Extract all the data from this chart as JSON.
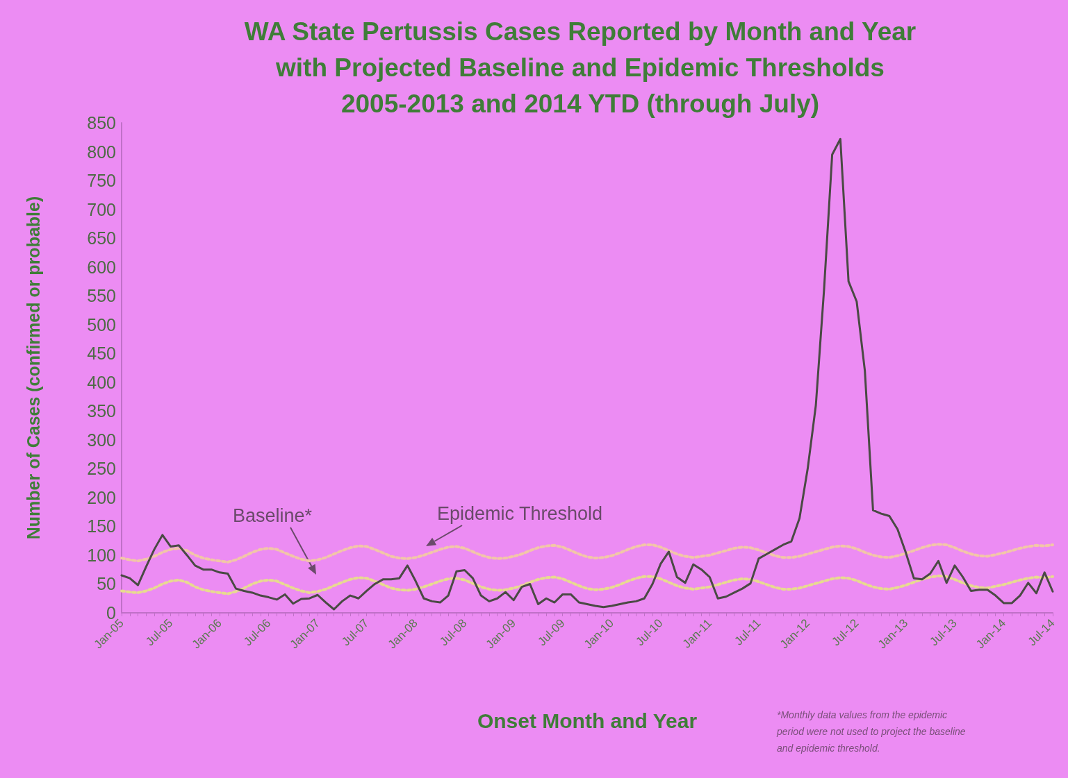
{
  "chart_data": {
    "type": "line",
    "title": "WA State Pertussis Cases Reported by Month and Year\nwith Projected Baseline and Epidemic Thresholds\n2005-2013 and 2014 YTD (through July)",
    "xlabel": "Onset Month and Year",
    "ylabel": "Number of Cases (confirmed or probable)",
    "categories": [
      "Jan-05",
      null,
      null,
      null,
      null,
      null,
      "Jul-05",
      null,
      null,
      null,
      null,
      null,
      "Jan-06",
      null,
      null,
      null,
      null,
      null,
      "Jul-06",
      null,
      null,
      null,
      null,
      null,
      "Jan-07",
      null,
      null,
      null,
      null,
      null,
      "Jul-07",
      null,
      null,
      null,
      null,
      null,
      "Jan-08",
      null,
      null,
      null,
      null,
      null,
      "Jul-08",
      null,
      null,
      null,
      null,
      null,
      "Jan-09",
      null,
      null,
      null,
      null,
      null,
      "Jul-09",
      null,
      null,
      null,
      null,
      null,
      "Jan-10",
      null,
      null,
      null,
      null,
      null,
      "Jul-10",
      null,
      null,
      null,
      null,
      null,
      "Jan-11",
      null,
      null,
      null,
      null,
      null,
      "Jul-11",
      null,
      null,
      null,
      null,
      null,
      "Jan-12",
      null,
      null,
      null,
      null,
      null,
      "Jul-12",
      null,
      null,
      null,
      null,
      null,
      "Jan-13",
      null,
      null,
      null,
      null,
      null,
      "Jul-13",
      null,
      null,
      null,
      null,
      null,
      "Jan-14",
      null,
      null,
      null,
      null,
      null,
      "Jul-14"
    ],
    "series": [
      {
        "color": "#f2c6a8",
        "line_style": "dotted",
        "values": [
          95,
          92,
          90,
          93,
          98,
          105,
          110,
          112,
          108,
          100,
          95,
          92,
          90,
          88,
          92,
          98,
          105,
          110,
          112,
          110,
          104,
          98,
          93,
          90,
          92,
          96,
          102,
          108,
          113,
          116,
          115,
          110,
          104,
          98,
          95,
          94,
          96,
          100,
          105,
          110,
          114,
          115,
          112,
          106,
          100,
          96,
          94,
          95,
          98,
          102,
          108,
          113,
          116,
          117,
          114,
          108,
          102,
          97,
          95,
          96,
          99,
          104,
          110,
          115,
          118,
          118,
          114,
          108,
          102,
          98,
          96,
          98,
          100,
          104,
          108,
          112,
          114,
          113,
          109,
          104,
          99,
          96,
          96,
          98,
          102,
          106,
          110,
          114,
          116,
          115,
          111,
          105,
          100,
          97,
          96,
          99,
          103,
          108,
          113,
          117,
          119,
          118,
          113,
          107,
          102,
          99,
          98,
          101,
          104,
          108,
          112,
          115,
          117,
          116,
          118
        ]
      },
      {
        "color": "#e8da90",
        "line_style": "dotted",
        "values": [
          38,
          36,
          35,
          38,
          43,
          50,
          55,
          57,
          53,
          45,
          40,
          37,
          35,
          33,
          37,
          43,
          50,
          55,
          57,
          55,
          49,
          43,
          38,
          35,
          37,
          41,
          47,
          53,
          58,
          61,
          60,
          55,
          49,
          43,
          40,
          39,
          41,
          45,
          50,
          55,
          59,
          60,
          57,
          51,
          45,
          41,
          39,
          40,
          43,
          47,
          53,
          58,
          61,
          62,
          59,
          53,
          47,
          42,
          40,
          41,
          44,
          49,
          55,
          60,
          63,
          63,
          59,
          53,
          47,
          43,
          41,
          43,
          45,
          49,
          53,
          57,
          59,
          58,
          54,
          49,
          44,
          41,
          41,
          43,
          47,
          51,
          55,
          59,
          61,
          60,
          56,
          50,
          45,
          42,
          41,
          44,
          48,
          53,
          58,
          62,
          64,
          63,
          58,
          52,
          47,
          44,
          43,
          46,
          49,
          53,
          57,
          60,
          62,
          61,
          63
        ]
      },
      {
        "color": "#4a4a44",
        "line_style": "solid",
        "values": [
          65,
          60,
          48,
          80,
          110,
          135,
          115,
          117,
          100,
          82,
          75,
          75,
          70,
          68,
          42,
          38,
          35,
          30,
          27,
          23,
          32,
          16,
          24,
          25,
          31,
          18,
          6,
          20,
          30,
          25,
          38,
          50,
          58,
          58,
          60,
          82,
          55,
          25,
          20,
          18,
          30,
          72,
          74,
          60,
          30,
          20,
          25,
          36,
          22,
          45,
          50,
          15,
          25,
          18,
          32,
          32,
          18,
          15,
          12,
          10,
          12,
          15,
          18,
          20,
          25,
          50,
          85,
          106,
          62,
          52,
          84,
          75,
          62,
          25,
          28,
          35,
          42,
          51,
          94,
          102,
          110,
          118,
          124,
          164,
          250,
          360,
          560,
          795,
          822,
          575,
          540,
          420,
          178,
          172,
          168,
          145,
          105,
          60,
          58,
          68,
          90,
          52,
          82,
          62,
          38,
          40,
          40,
          30,
          17,
          17,
          30,
          52,
          34,
          70,
          37
        ]
      }
    ],
    "ylim": [
      0,
      850
    ],
    "yticks": [
      0,
      50,
      100,
      150,
      200,
      250,
      300,
      350,
      400,
      450,
      500,
      550,
      600,
      650,
      700,
      750,
      800,
      850
    ],
    "marker": "none",
    "annotations": [
      "Baseline*",
      "Epidemic Threshold",
      "*Monthly data values from the epidemic\nperiod were not used to project the baseline\nand epidemic threshold."
    ]
  }
}
